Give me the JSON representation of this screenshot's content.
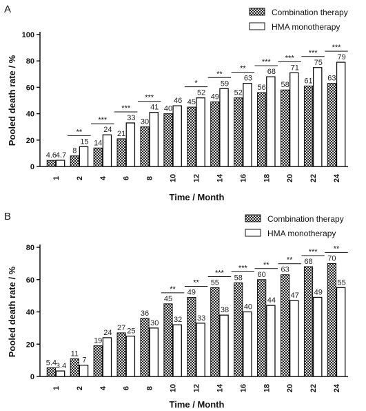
{
  "colors": {
    "combination_fill": "checkered-dark",
    "monotherapy_fill": "#ffffff",
    "axis": "#111111"
  },
  "chart_data": [
    {
      "panel_label": "A",
      "type": "bar",
      "xlabel": "Time / Month",
      "ylabel": "Pooled death rate / %",
      "ylim": [
        0,
        100
      ],
      "yticks": [
        0,
        20,
        40,
        60,
        80,
        100
      ],
      "grid": false,
      "legend_position": "top-right",
      "categories": [
        "1",
        "2",
        "4",
        "6",
        "8",
        "10",
        "12",
        "14",
        "16",
        "18",
        "20",
        "22",
        "24"
      ],
      "series": [
        {
          "name": "Combination therapy",
          "values": [
            4.6,
            8,
            14,
            21,
            30,
            40,
            45,
            49,
            52,
            56,
            58,
            61,
            63
          ]
        },
        {
          "name": "HMA monotherapy",
          "values": [
            4.7,
            15,
            24,
            33,
            41,
            46,
            52,
            59,
            63,
            68,
            71,
            75,
            79
          ]
        }
      ],
      "significance": [
        "",
        "**",
        "***",
        "***",
        "***",
        "",
        "*",
        "**",
        "**",
        "***",
        "***",
        "***",
        "***"
      ]
    },
    {
      "panel_label": "B",
      "type": "bar",
      "xlabel": "Time / Month",
      "ylabel": "Pooled death rate / %",
      "ylim": [
        0,
        80
      ],
      "yticks": [
        0,
        20,
        40,
        60,
        80
      ],
      "grid": false,
      "legend_position": "top-right",
      "categories": [
        "1",
        "2",
        "4",
        "6",
        "8",
        "10",
        "12",
        "14",
        "16",
        "18",
        "20",
        "22",
        "24"
      ],
      "series": [
        {
          "name": "Combination therapy",
          "values": [
            5.4,
            11,
            19,
            27,
            36,
            45,
            49,
            55,
            58,
            60,
            63,
            68,
            70
          ]
        },
        {
          "name": "HMA monotherapy",
          "values": [
            3.4,
            7,
            24,
            25,
            30,
            32,
            33,
            38,
            40,
            44,
            47,
            49,
            55
          ]
        }
      ],
      "significance": [
        "",
        "",
        "",
        "",
        "",
        "**",
        "**",
        "***",
        "***",
        "**",
        "**",
        "***",
        "**"
      ]
    }
  ]
}
